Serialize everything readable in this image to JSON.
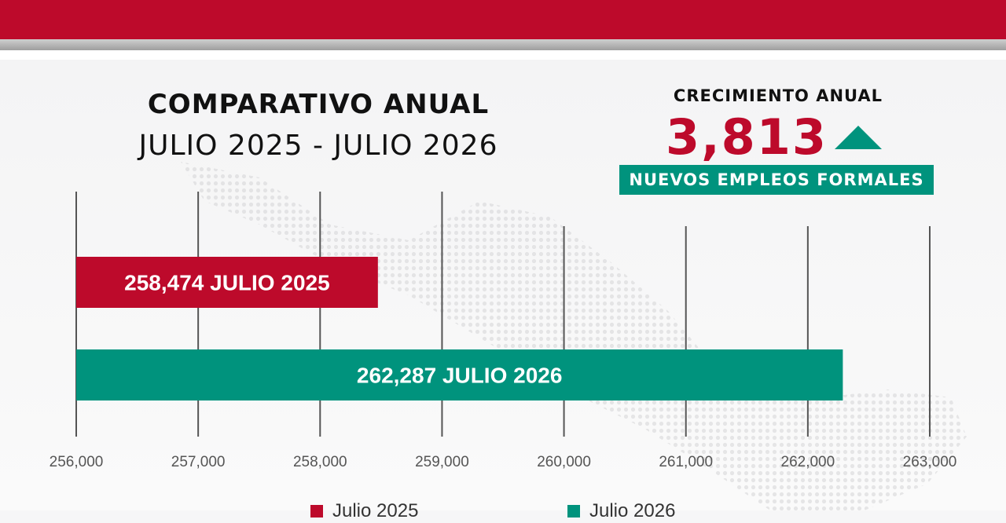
{
  "header": {
    "title_line1": "COMPARATIVO ANUAL",
    "title_line2": "JULIO 2025 - JULIO 2026"
  },
  "growth": {
    "label": "CRECIMIENTO ANUAL",
    "value": "3,813",
    "caption": "NUEVOS EMPLEOS FORMALES",
    "direction": "up"
  },
  "colors": {
    "brand_red": "#bd0a2b",
    "brand_green": "#00937d"
  },
  "chart_data": {
    "type": "bar",
    "orientation": "horizontal",
    "grid": true,
    "legend_position": "bottom",
    "xlim": [
      256000,
      263000
    ],
    "ticks": [
      256000,
      257000,
      258000,
      259000,
      260000,
      261000,
      262000,
      263000
    ],
    "tick_labels": [
      "256,000",
      "257,000",
      "258,000",
      "259,000",
      "260,000",
      "261,000",
      "262,000",
      "263,000"
    ],
    "bars": [
      {
        "name": "Julio 2025",
        "value": 258474,
        "label": "258,474 JULIO 2025",
        "color": "#bd0a2b"
      },
      {
        "name": "Julio 2026",
        "value": 262287,
        "label": "262,287 JULIO 2026",
        "color": "#00937d"
      }
    ]
  }
}
